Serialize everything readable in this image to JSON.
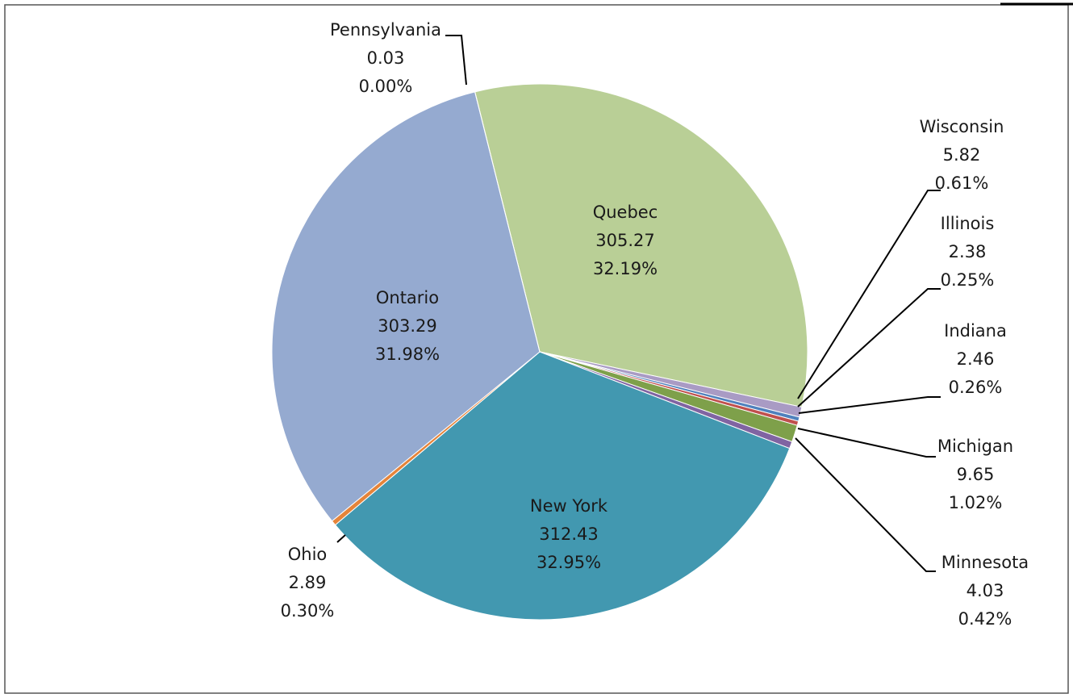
{
  "chart_data": {
    "type": "pie",
    "title": "",
    "slices": [
      {
        "name": "Quebec",
        "value": 305.27,
        "percent": "32.19%",
        "color": "#b9cf96"
      },
      {
        "name": "Wisconsin",
        "value": 5.82,
        "percent": "0.61%",
        "color": "#a99bc4"
      },
      {
        "name": "Illinois",
        "value": 2.38,
        "percent": "0.25%",
        "color": "#4f81bd"
      },
      {
        "name": "Indiana",
        "value": 2.46,
        "percent": "0.26%",
        "color": "#c0504d"
      },
      {
        "name": "Michigan",
        "value": 9.65,
        "percent": "1.02%",
        "color": "#7ea04a"
      },
      {
        "name": "Minnesota",
        "value": 4.03,
        "percent": "0.42%",
        "color": "#8064a2"
      },
      {
        "name": "New York",
        "value": 312.43,
        "percent": "32.95%",
        "color": "#4298b0"
      },
      {
        "name": "Ohio",
        "value": 2.89,
        "percent": "0.30%",
        "color": "#e5843a"
      },
      {
        "name": "Ontario",
        "value": 303.29,
        "percent": "31.98%",
        "color": "#95aad0"
      },
      {
        "name": "Pennsylvania",
        "value": 0.03,
        "percent": "0.00%",
        "color": "#1f497d"
      }
    ]
  }
}
